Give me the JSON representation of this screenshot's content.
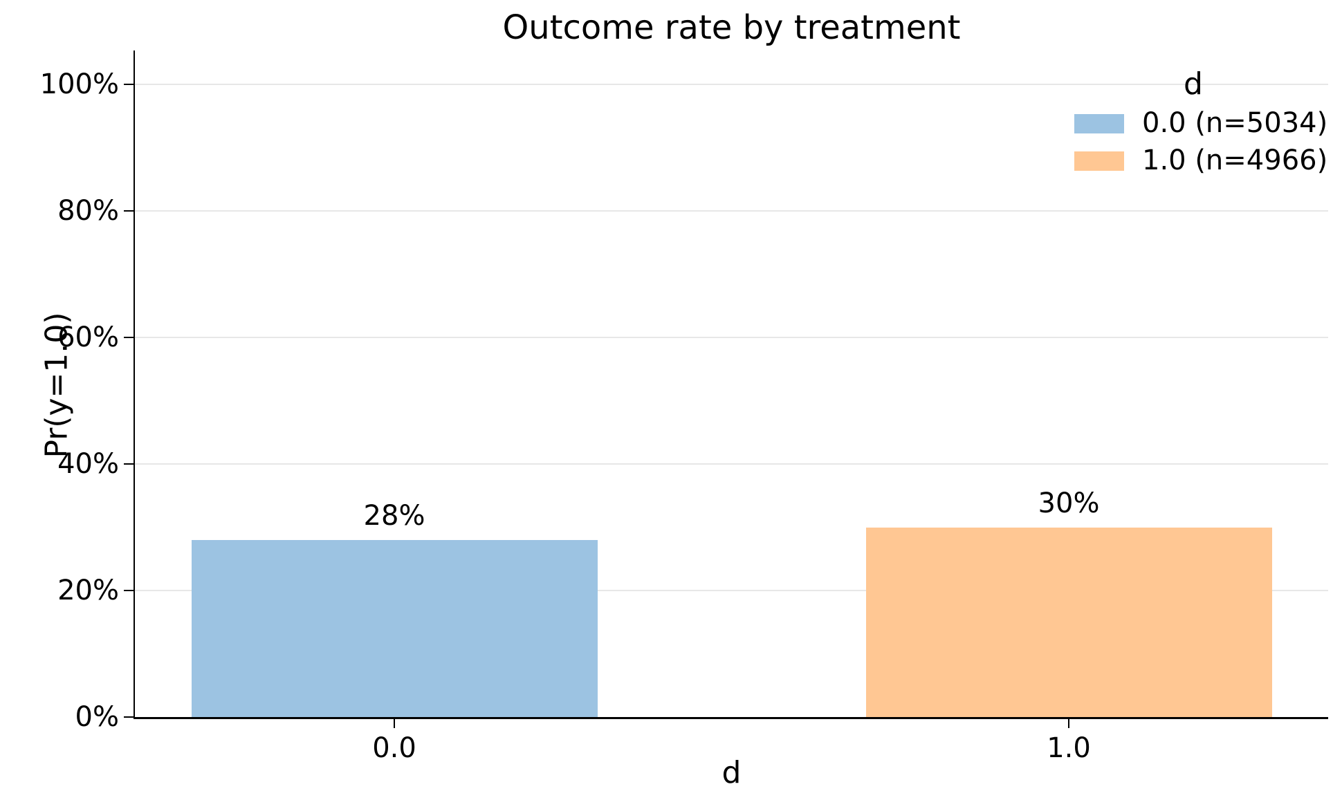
{
  "chart_data": {
    "type": "bar",
    "title": "Outcome rate by treatment",
    "xlabel": "d",
    "ylabel": "Pr(y=1.0)",
    "categories": [
      "0.0",
      "1.0"
    ],
    "values": [
      28,
      30
    ],
    "value_labels": [
      "28%",
      "30%"
    ],
    "bar_colors": [
      "#9cc3e2",
      "#ffc793"
    ],
    "ylim": [
      0,
      105
    ],
    "yticks": [
      {
        "value": 0,
        "label": "0%"
      },
      {
        "value": 20,
        "label": "20%"
      },
      {
        "value": 40,
        "label": "40%"
      },
      {
        "value": 60,
        "label": "60%"
      },
      {
        "value": 80,
        "label": "80%"
      },
      {
        "value": 100,
        "label": "100%"
      }
    ],
    "grid": true,
    "gridline_color": "#e7e7e7",
    "axis_color": "#000000",
    "legend": {
      "title": "d",
      "position": "upper right",
      "entries": [
        {
          "label": "0.0 (n=5034)",
          "color": "#9cc3e2"
        },
        {
          "label": "1.0 (n=4966)",
          "color": "#ffc793"
        }
      ]
    }
  }
}
